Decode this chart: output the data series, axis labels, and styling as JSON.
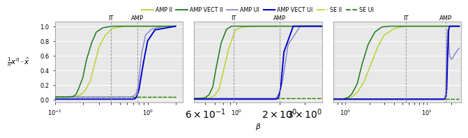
{
  "legend_entries": [
    {
      "label": "AMP II",
      "color": "#b8d430",
      "ls": "-",
      "lw": 1.3
    },
    {
      "label": "AMP VECT II",
      "color": "#1a7a1a",
      "ls": "-",
      "lw": 1.3
    },
    {
      "label": "AMP UI",
      "color": "#8888cc",
      "ls": "-",
      "lw": 1.3
    },
    {
      "label": "AMP VECT UI",
      "color": "#0000cc",
      "ls": "-",
      "lw": 1.5
    },
    {
      "label": "SE II",
      "color": "#b8d430",
      "ls": "-.",
      "lw": 1.3
    },
    {
      "label": "SE UI",
      "color": "#1a7a1a",
      "ls": "--",
      "lw": 1.3
    }
  ],
  "subplots": [
    {
      "xlim_log": [
        -1.0,
        0.38
      ],
      "it_line": 0.4,
      "amp_line": 0.78,
      "curves": {
        "amp_ii": {
          "x": [
            0.1,
            0.13,
            0.15,
            0.17,
            0.19,
            0.21,
            0.24,
            0.27,
            0.3,
            0.35,
            0.42,
            0.55,
            0.8,
            1.5,
            2.0
          ],
          "y": [
            0.04,
            0.04,
            0.04,
            0.05,
            0.07,
            0.12,
            0.25,
            0.5,
            0.72,
            0.88,
            0.97,
            1.0,
            1.0,
            1.0,
            1.0
          ]
        },
        "amp_vect_ii": {
          "x": [
            0.1,
            0.12,
            0.14,
            0.16,
            0.17,
            0.18,
            0.2,
            0.22,
            0.25,
            0.28,
            0.33,
            0.42,
            0.6,
            1.5,
            2.0
          ],
          "y": [
            0.04,
            0.04,
            0.04,
            0.05,
            0.08,
            0.15,
            0.3,
            0.55,
            0.78,
            0.92,
            0.98,
            1.0,
            1.0,
            1.0,
            1.0
          ]
        },
        "amp_ui": {
          "x": [
            0.1,
            0.55,
            0.65,
            0.7,
            0.74,
            0.76,
            0.78,
            0.8,
            0.86,
            0.95,
            1.1,
            1.5,
            2.0
          ],
          "y": [
            0.04,
            0.04,
            0.04,
            0.05,
            0.07,
            0.1,
            0.15,
            0.25,
            0.62,
            0.88,
            0.96,
            1.0,
            1.0
          ]
        },
        "amp_vect_ui": {
          "x": [
            0.1,
            0.6,
            0.7,
            0.74,
            0.76,
            0.77,
            0.78,
            0.79,
            0.81,
            0.9,
            1.0,
            1.2,
            2.0
          ],
          "y": [
            0.01,
            0.01,
            0.01,
            0.02,
            0.04,
            0.06,
            0.08,
            0.1,
            0.15,
            0.5,
            0.8,
            0.95,
            1.0
          ]
        },
        "se_ii": {
          "x": [
            0.1,
            0.39,
            0.4,
            0.42,
            2.0
          ],
          "y": [
            0.04,
            0.04,
            0.04,
            0.04,
            0.04
          ]
        },
        "se_ui": {
          "x": [
            0.1,
            0.77,
            0.78,
            0.8,
            2.0
          ],
          "y": [
            0.04,
            0.04,
            0.04,
            0.04,
            0.04
          ]
        }
      }
    },
    {
      "xlim_log": [
        -0.3,
        0.6
      ],
      "it_line": 0.95,
      "amp_line": 2.0,
      "curves": {
        "amp_ii": {
          "x": [
            0.5,
            0.6,
            0.65,
            0.7,
            0.75,
            0.8,
            0.88,
            0.98,
            1.1,
            1.4,
            2.0,
            4.0
          ],
          "y": [
            0.02,
            0.02,
            0.03,
            0.06,
            0.14,
            0.36,
            0.7,
            0.95,
            0.99,
            1.0,
            1.0,
            1.0
          ]
        },
        "amp_vect_ii": {
          "x": [
            0.5,
            0.55,
            0.6,
            0.64,
            0.68,
            0.72,
            0.78,
            0.85,
            0.92,
            1.0,
            1.2,
            4.0
          ],
          "y": [
            0.02,
            0.02,
            0.03,
            0.07,
            0.18,
            0.45,
            0.78,
            0.96,
            1.0,
            1.0,
            1.0,
            1.0
          ]
        },
        "amp_ui": {
          "x": [
            0.5,
            1.85,
            1.9,
            1.95,
            2.0,
            2.1,
            2.3,
            2.8,
            4.0
          ],
          "y": [
            0.02,
            0.02,
            0.03,
            0.06,
            0.1,
            0.25,
            0.75,
            1.0,
            1.0
          ]
        },
        "amp_vect_ui": {
          "x": [
            0.5,
            1.9,
            1.94,
            1.97,
            2.0,
            2.05,
            2.15,
            2.5,
            4.0
          ],
          "y": [
            0.01,
            0.01,
            0.02,
            0.04,
            0.08,
            0.2,
            0.65,
            1.0,
            1.0
          ]
        },
        "se_ii": {
          "x": [
            0.5,
            0.94,
            0.95,
            1.0,
            4.0
          ],
          "y": [
            0.02,
            0.02,
            0.02,
            0.02,
            0.02
          ]
        },
        "se_ui": {
          "x": [
            0.5,
            1.99,
            2.0,
            2.05,
            4.0
          ],
          "y": [
            0.02,
            0.02,
            0.02,
            0.02,
            0.02
          ]
        }
      }
    },
    {
      "xlim_log": [
        -0.15,
        1.42
      ],
      "it_line": 5.5,
      "amp_line": 17.0,
      "curves": {
        "amp_ii": {
          "x": [
            0.7,
            0.8,
            0.9,
            1.0,
            1.2,
            1.4,
            1.7,
            2.0,
            2.5,
            3.0,
            4.0,
            5.5,
            8.0,
            15.0,
            25.0
          ],
          "y": [
            0.01,
            0.01,
            0.01,
            0.02,
            0.04,
            0.1,
            0.25,
            0.45,
            0.72,
            0.88,
            0.97,
            1.0,
            1.0,
            1.0,
            1.0
          ]
        },
        "amp_vect_ii": {
          "x": [
            0.7,
            0.8,
            0.9,
            1.0,
            1.1,
            1.2,
            1.4,
            1.6,
            1.9,
            2.3,
            2.8,
            3.5,
            5.0,
            25.0
          ],
          "y": [
            0.01,
            0.01,
            0.01,
            0.02,
            0.04,
            0.08,
            0.22,
            0.48,
            0.75,
            0.92,
            0.99,
            1.0,
            1.0,
            1.0
          ]
        },
        "amp_ui": {
          "x": [
            0.7,
            16.0,
            16.5,
            17.0,
            17.5,
            18.0,
            18.5,
            19.0,
            20.0,
            21.0,
            22.0,
            24.0,
            25.0
          ],
          "y": [
            0.01,
            0.01,
            0.02,
            0.08,
            0.65,
            0.95,
            0.8,
            0.6,
            0.55,
            0.58,
            0.62,
            0.68,
            0.7
          ]
        },
        "amp_vect_ui": {
          "x": [
            0.7,
            16.5,
            17.0,
            17.2,
            17.5,
            18.0,
            18.5,
            19.0,
            20.0,
            22.0,
            25.0
          ],
          "y": [
            0.01,
            0.01,
            0.02,
            0.05,
            0.15,
            0.6,
            0.95,
            1.0,
            1.0,
            1.0,
            1.0
          ]
        },
        "se_ii": {
          "x": [
            0.7,
            5.4,
            5.5,
            5.6,
            6.0,
            25.0
          ],
          "y": [
            0.01,
            0.01,
            0.01,
            0.01,
            0.01,
            0.01
          ]
        },
        "se_ui": {
          "x": [
            0.7,
            16.9,
            17.0,
            17.2,
            25.0
          ],
          "y": [
            0.01,
            0.01,
            0.01,
            0.01,
            0.01
          ]
        }
      }
    }
  ],
  "ylim": [
    -0.03,
    1.06
  ],
  "yticks": [
    0.0,
    0.2,
    0.4,
    0.6,
    0.8,
    1.0
  ],
  "ylabel": "$\\frac{1}{n}x^0 \\cdot \\hat{x}$",
  "xlabel": "$\\beta$",
  "bg_color": "#e8e8e8",
  "grid_color": "#ffffff",
  "curve_order": [
    "amp_vect_ii",
    "amp_ii",
    "amp_vect_ui",
    "amp_ui",
    "se_ii",
    "se_ui"
  ]
}
